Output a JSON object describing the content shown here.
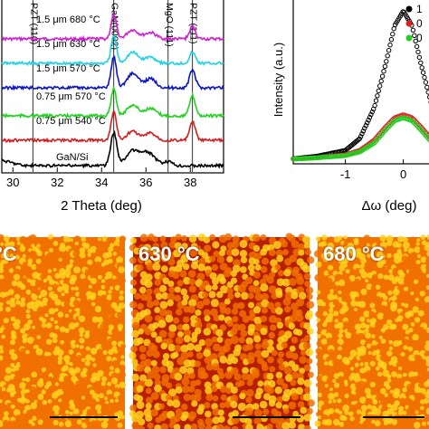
{
  "chart_data": [
    {
      "type": "line",
      "xlabel": "2 Theta (deg)",
      "ylabel": "",
      "xlim": [
        29.5,
        39.5
      ],
      "xticks": [
        30,
        32,
        34,
        36,
        38
      ],
      "reference_lines": [
        {
          "label": "PZT (110)",
          "x": 30.9
        },
        {
          "label": "GaN(0002)",
          "x": 34.55
        },
        {
          "label": "MgO (111)",
          "x": 37.0
        },
        {
          "label": "PZT (111)",
          "x": 38.1
        }
      ],
      "series": [
        {
          "name": "1.5 μm 680 °C",
          "color": "#d21ed2"
        },
        {
          "name": "1.5 μm 630 °C",
          "color": "#1ed2e6"
        },
        {
          "name": "1.5 μm 570 °C",
          "color": "#0a14c8"
        },
        {
          "name": "0.75 μm 570 °C",
          "color": "#1ed21e"
        },
        {
          "name": "0.75 μm 540 °C",
          "color": "#d21e1e"
        },
        {
          "name": "GaN/Si",
          "color": "#000000"
        }
      ]
    },
    {
      "type": "scatter",
      "xlabel": "Δω (deg)",
      "ylabel": "Intensity (a.u.)",
      "xlim": [
        -1.9,
        0.6
      ],
      "xticks": [
        -1,
        0
      ],
      "legend_position": "top-right",
      "series": [
        {
          "name": "1",
          "color": "#000000",
          "x": [
            -1.5,
            -1.0,
            -0.75,
            -0.5,
            -0.3,
            -0.15,
            0.0,
            0.15,
            0.3,
            0.5
          ],
          "y": [
            0.02,
            0.06,
            0.14,
            0.35,
            0.65,
            0.9,
            1.0,
            0.9,
            0.65,
            0.35
          ]
        },
        {
          "name": "0",
          "color": "#e02020",
          "x": [
            -1.5,
            -1.0,
            -0.75,
            -0.5,
            -0.3,
            -0.15,
            0.0,
            0.15,
            0.3,
            0.5
          ],
          "y": [
            0.01,
            0.03,
            0.06,
            0.13,
            0.22,
            0.28,
            0.3,
            0.28,
            0.22,
            0.13
          ]
        },
        {
          "name": "0",
          "color": "#20d020",
          "x": [
            -1.5,
            -1.0,
            -0.75,
            -0.5,
            -0.3,
            -0.15,
            0.0,
            0.15,
            0.3,
            0.5
          ],
          "y": [
            0.01,
            0.025,
            0.05,
            0.11,
            0.2,
            0.26,
            0.28,
            0.26,
            0.2,
            0.11
          ]
        }
      ]
    }
  ],
  "afm_images": [
    {
      "label": "°C"
    },
    {
      "label": "630 °C"
    },
    {
      "label": "680 °C"
    }
  ],
  "colors": {
    "afm_dark": "#b81e00",
    "afm_mid": "#f07000",
    "afm_light": "#ffd21e"
  }
}
